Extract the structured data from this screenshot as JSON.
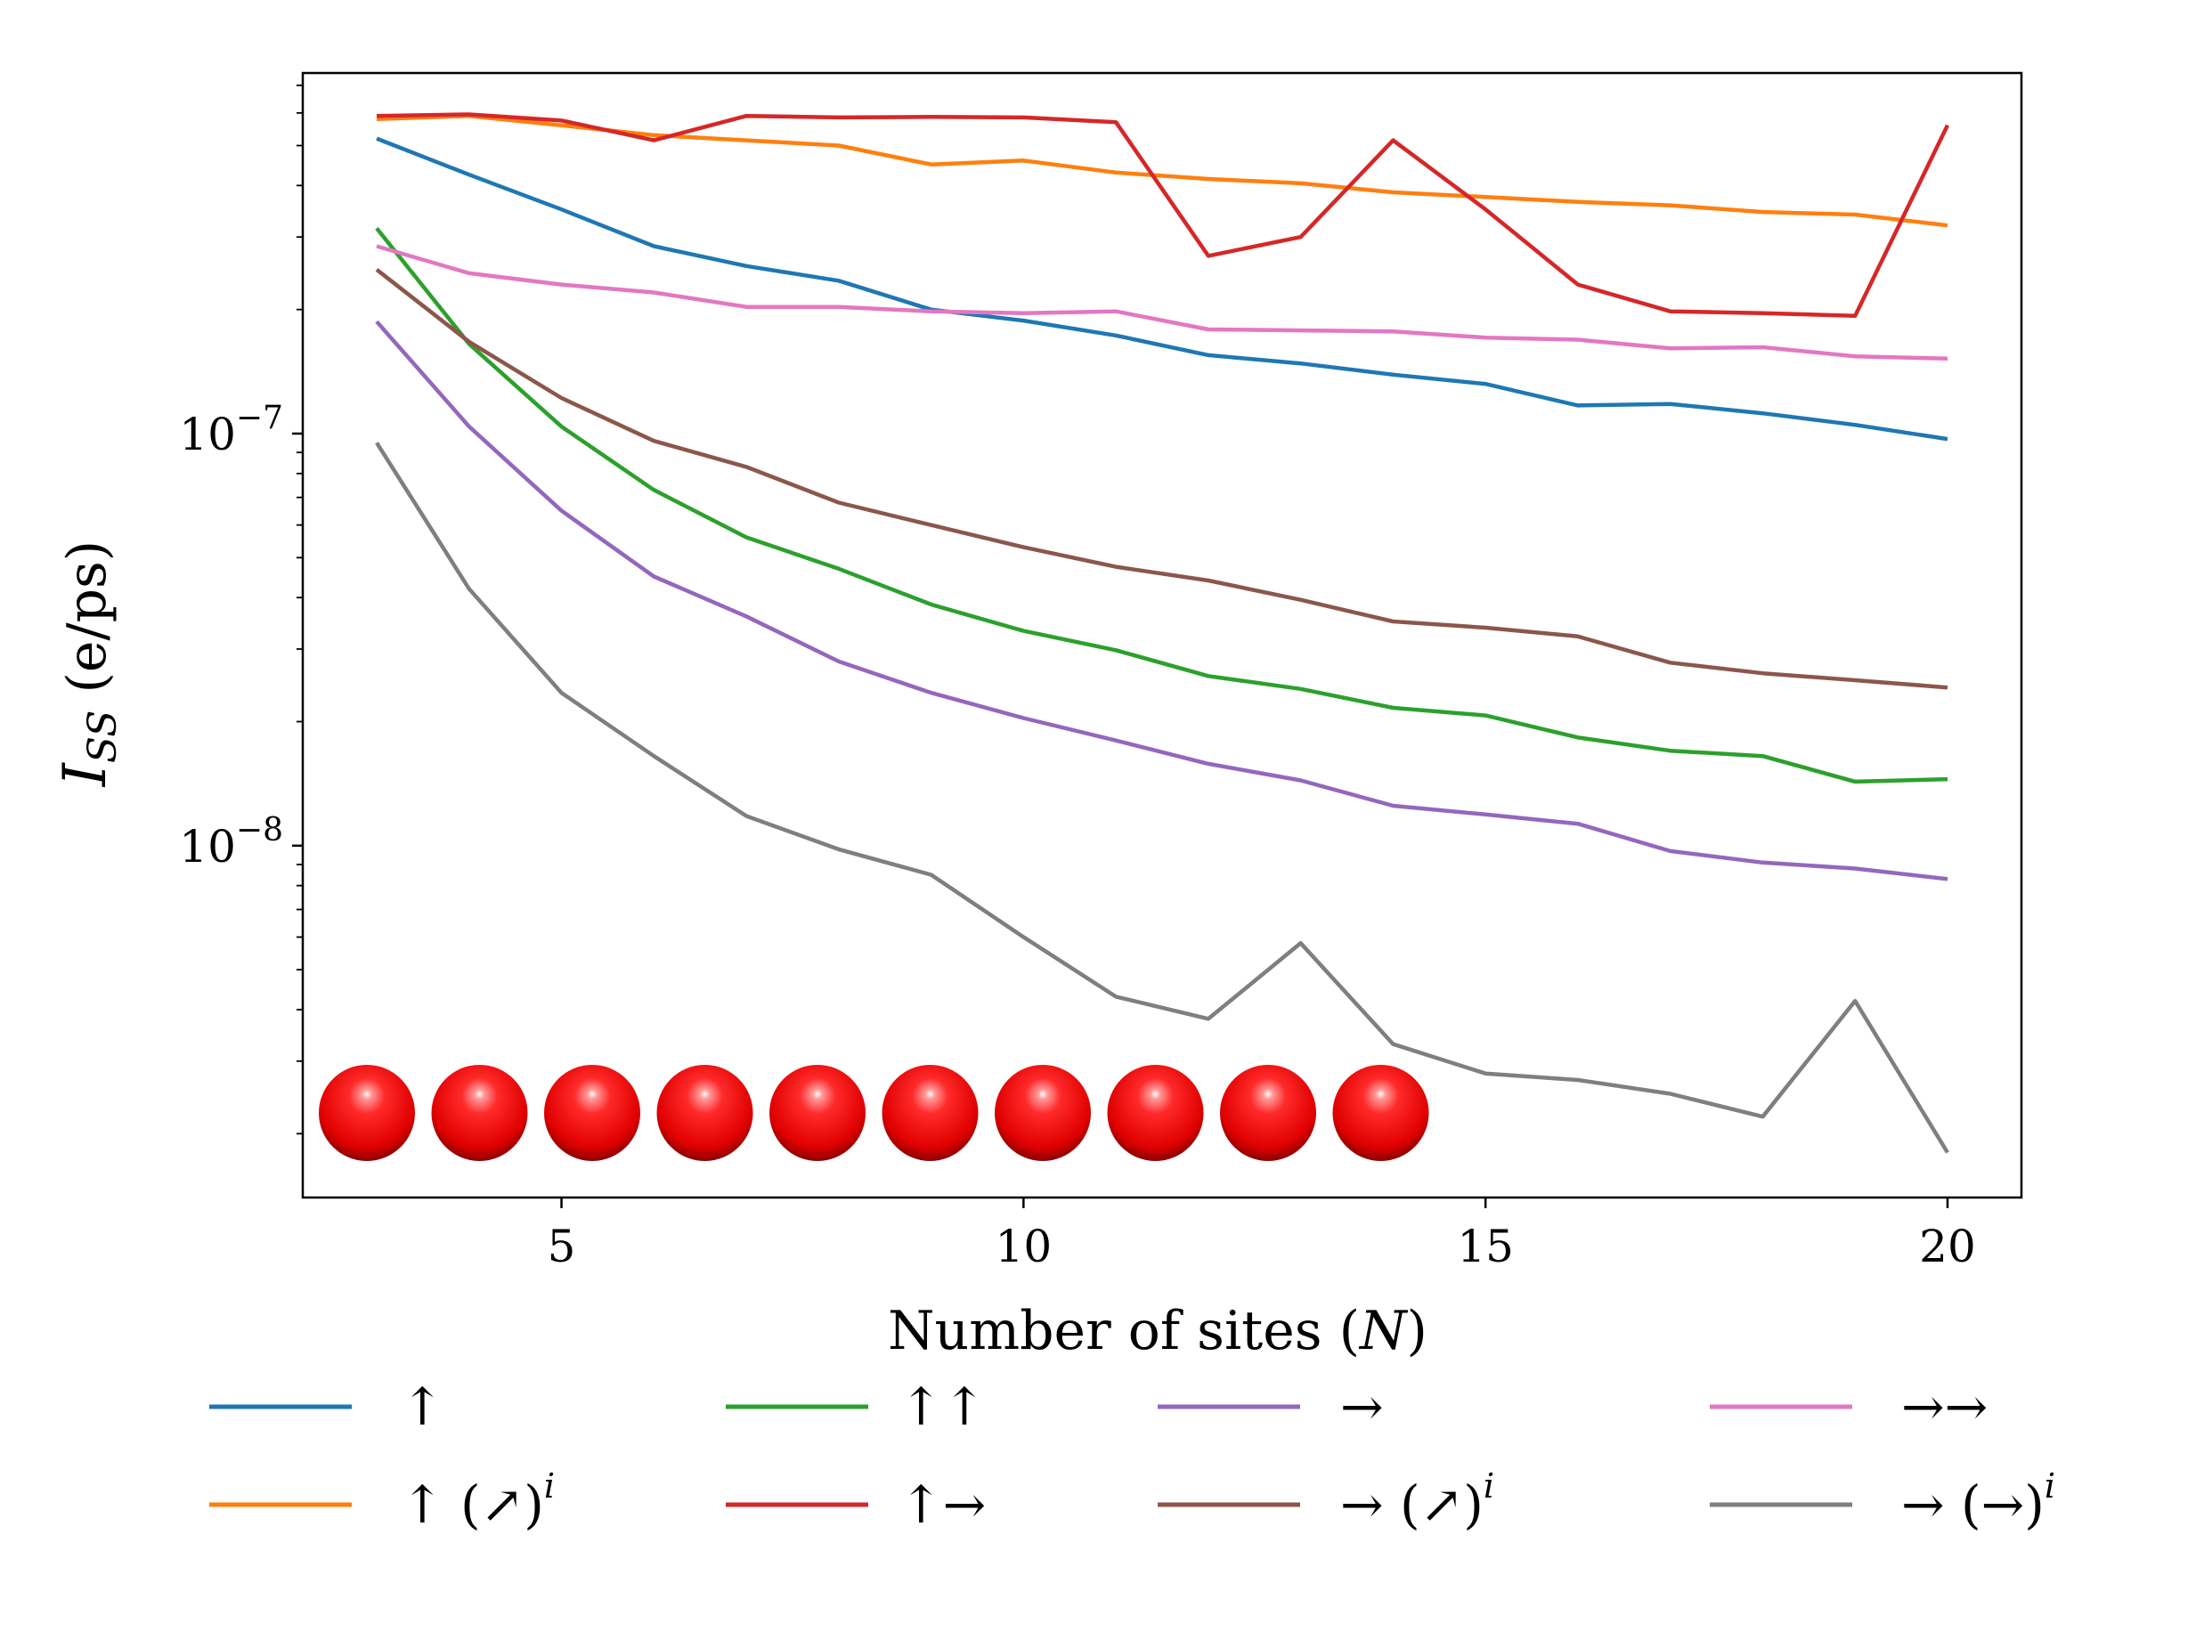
{
  "chart_data": {
    "type": "line",
    "title": "",
    "xlabel": "Number of sites (N)",
    "ylabel": "I_SS (e/ps)",
    "ylabel_main": "I",
    "ylabel_sub": "SS",
    "ylabel_unit": " (e/ps)",
    "xlabel_main": "Number of sites (",
    "xlabel_var": "N",
    "xlabel_end": ")",
    "yscale": "log",
    "xlim": [
      2.2,
      20.8
    ],
    "ylim": [
      1.4e-09,
      7.5e-07
    ],
    "x_ticks": [
      5,
      10,
      15,
      20
    ],
    "x_tick_labels": [
      "5",
      "10",
      "15",
      "20"
    ],
    "y_ticks": [
      1e-08,
      1e-07
    ],
    "y_tick_labels": [
      {
        "base": "10",
        "exp": "−8"
      },
      {
        "base": "10",
        "exp": "−7"
      }
    ],
    "grid": false,
    "legend_position": "below",
    "x": [
      3,
      4,
      5,
      6,
      7,
      8,
      9,
      10,
      11,
      12,
      13,
      14,
      15,
      16,
      17,
      18,
      19,
      20
    ],
    "series": [
      {
        "name": "↑",
        "color": "#1f77b4",
        "values": [
          5.2e-07,
          4.25e-07,
          3.5e-07,
          2.85e-07,
          2.55e-07,
          2.35e-07,
          2e-07,
          1.88e-07,
          1.73e-07,
          1.55e-07,
          1.48e-07,
          1.39e-07,
          1.32e-07,
          1.17e-07,
          1.18e-07,
          1.12e-07,
          1.05e-07,
          9.7e-08
        ]
      },
      {
        "name": "↑ (↗)",
        "sup": "i",
        "color": "#ff7f0e",
        "values": [
          5.8e-07,
          5.9e-07,
          5.6e-07,
          5.3e-07,
          5.15e-07,
          5e-07,
          4.5e-07,
          4.6e-07,
          4.3e-07,
          4.15e-07,
          4.05e-07,
          3.85e-07,
          3.75e-07,
          3.65e-07,
          3.58e-07,
          3.45e-07,
          3.4e-07,
          3.2e-07
        ]
      },
      {
        "name": "↑↑",
        "color": "#2ca02c",
        "values": [
          3.15e-07,
          1.65e-07,
          1.04e-07,
          7.3e-08,
          5.6e-08,
          4.7e-08,
          3.85e-08,
          3.32e-08,
          2.98e-08,
          2.58e-08,
          2.4e-08,
          2.16e-08,
          2.07e-08,
          1.83e-08,
          1.7e-08,
          1.65e-08,
          1.43e-08,
          1.45e-08
        ]
      },
      {
        "name": "↑→",
        "color": "#d62728",
        "values": [
          5.9e-07,
          5.95e-07,
          5.75e-07,
          5.15e-07,
          5.9e-07,
          5.85e-07,
          5.87e-07,
          5.85e-07,
          5.7e-07,
          2.7e-07,
          3e-07,
          5.15e-07,
          3.5e-07,
          2.3e-07,
          1.98e-07,
          1.96e-07,
          1.93e-07,
          5.6e-07
        ]
      },
      {
        "name": "→",
        "color": "#9467bd",
        "values": [
          1.87e-07,
          1.04e-07,
          6.5e-08,
          4.5e-08,
          3.6e-08,
          2.8e-08,
          2.35e-08,
          2.04e-08,
          1.8e-08,
          1.58e-08,
          1.44e-08,
          1.25e-08,
          1.19e-08,
          1.13e-08,
          9.7e-09,
          9.1e-09,
          8.8e-09,
          8.3e-09
        ]
      },
      {
        "name": "→ (↗)",
        "sup": "i",
        "color": "#8c564b",
        "values": [
          2.5e-07,
          1.67e-07,
          1.22e-07,
          9.6e-08,
          8.3e-08,
          6.8e-08,
          6e-08,
          5.3e-08,
          4.75e-08,
          4.4e-08,
          3.95e-08,
          3.5e-08,
          3.38e-08,
          3.22e-08,
          2.78e-08,
          2.62e-08,
          2.52e-08,
          2.42e-08
        ]
      },
      {
        "name": "→→",
        "color": "#e377c2",
        "values": [
          2.85e-07,
          2.45e-07,
          2.3e-07,
          2.2e-07,
          2.03e-07,
          2.03e-07,
          1.98e-07,
          1.96e-07,
          1.98e-07,
          1.79e-07,
          1.78e-07,
          1.77e-07,
          1.71e-07,
          1.69e-07,
          1.61e-07,
          1.62e-07,
          1.54e-07,
          1.52e-07
        ]
      },
      {
        "name": "→ (→)",
        "sup": "i",
        "color": "#7f7f7f",
        "values": [
          9.5e-08,
          4.2e-08,
          2.35e-08,
          1.65e-08,
          1.18e-08,
          9.8e-09,
          8.5e-09,
          6e-09,
          4.3e-09,
          3.8e-09,
          5.8e-09,
          3.3e-09,
          2.8e-09,
          2.7e-09,
          2.5e-09,
          2.2e-09,
          4.2e-09,
          1.8e-09
        ]
      }
    ],
    "inset_spheres": {
      "count": 10,
      "color": "#ff2020"
    }
  }
}
